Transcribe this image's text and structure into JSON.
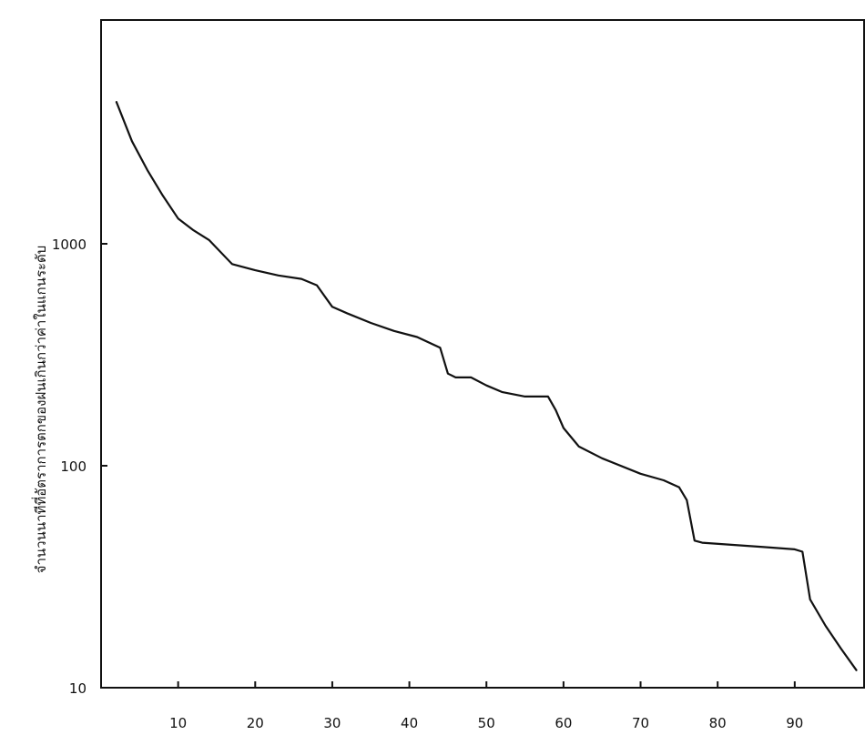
{
  "chart_data": {
    "type": "line",
    "title": "",
    "xlabel": "",
    "ylabel": "จำนวนนาทีที่อัตราการตกของฝนเกินกว่าค่าในแกนระดับ",
    "y_scale": "log",
    "ylim": [
      10,
      5000
    ],
    "xlim": [
      0,
      99
    ],
    "grid": false,
    "x_ticks": [
      10,
      20,
      30,
      40,
      50,
      60,
      70,
      80,
      90
    ],
    "x_tick_labels": [
      "10",
      "20",
      "30",
      "40",
      "50",
      "60",
      "70",
      "80",
      "90"
    ],
    "y_ticks": [
      10,
      100,
      1000
    ],
    "y_tick_labels": [
      "10",
      "100",
      "1000"
    ],
    "series": [
      {
        "color": "#111111",
        "x": [
          2,
          4,
          6,
          8,
          10,
          12,
          14,
          17,
          20,
          23,
          26,
          28,
          30,
          32,
          35,
          38,
          41,
          44,
          45,
          46,
          48,
          50,
          52,
          55,
          58,
          59,
          60,
          62,
          65,
          70,
          73,
          75,
          76,
          77,
          78,
          82,
          86,
          90,
          91,
          92,
          94,
          96,
          98
        ],
        "y": [
          4350,
          2900,
          2150,
          1650,
          1300,
          1150,
          1040,
          810,
          760,
          720,
          695,
          650,
          520,
          485,
          440,
          405,
          380,
          340,
          260,
          250,
          250,
          230,
          215,
          205,
          205,
          178,
          148,
          122,
          108,
          92,
          86,
          80,
          70,
          46,
          45,
          44,
          43,
          42,
          41,
          25,
          19,
          15,
          12
        ]
      }
    ]
  }
}
